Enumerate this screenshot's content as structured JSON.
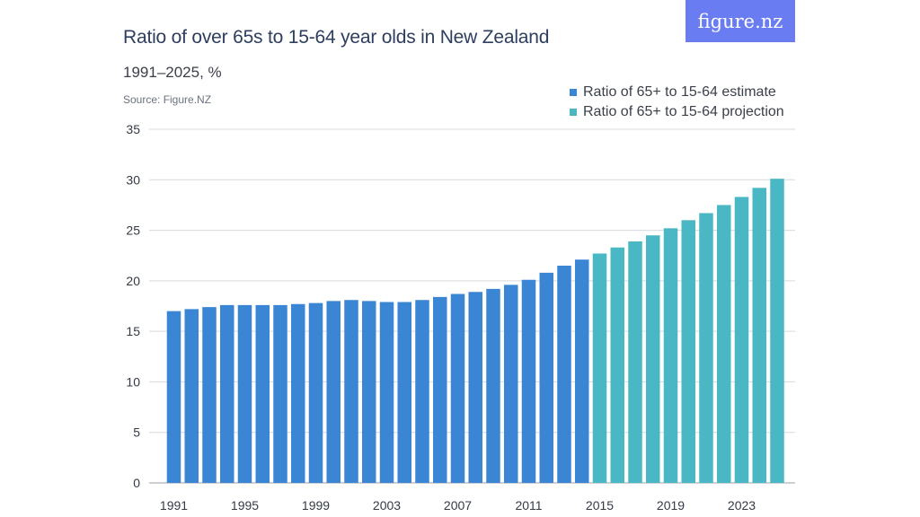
{
  "header": {
    "title": "Ratio of over 65s to 15-64 year olds in New Zealand",
    "subtitle": "1991–2025, %",
    "source": "Source: Figure.NZ",
    "logo_text": "figure.nz",
    "logo_color": "#6a7cf2"
  },
  "legend": [
    {
      "label": "Ratio of 65+ to 15-64 estimate",
      "color": "#3a86d4"
    },
    {
      "label": "Ratio of 65+ to 15-64 projection",
      "color": "#4ab8c4"
    }
  ],
  "chart_data": {
    "type": "bar",
    "title": "Ratio of over 65s to 15-64 year olds in New Zealand",
    "subtitle": "1991–2025, %",
    "ylim": [
      0,
      35
    ],
    "yticks": [
      0,
      5,
      10,
      15,
      20,
      25,
      30,
      35
    ],
    "grid": true,
    "legend_position": "top-right",
    "categories": [
      "1991",
      "1992",
      "1993",
      "1994",
      "1995",
      "1996",
      "1997",
      "1998",
      "1999",
      "2000",
      "2001",
      "2002",
      "2003",
      "2004",
      "2005",
      "2006",
      "2007",
      "2008",
      "2009",
      "2010",
      "2011",
      "2012",
      "2013",
      "2014",
      "2015",
      "2016",
      "2017",
      "2018",
      "2019",
      "2020",
      "2021",
      "2022",
      "2023",
      "2024",
      "2025"
    ],
    "xtick_labels": [
      "1991",
      "1995",
      "1999",
      "2003",
      "2007",
      "2011",
      "2015",
      "2019",
      "2023"
    ],
    "series": [
      {
        "name": "Ratio of 65+ to 15-64 estimate",
        "color": "#3a86d4",
        "x": [
          "1991",
          "1992",
          "1993",
          "1994",
          "1995",
          "1996",
          "1997",
          "1998",
          "1999",
          "2000",
          "2001",
          "2002",
          "2003",
          "2004",
          "2005",
          "2006",
          "2007",
          "2008",
          "2009",
          "2010",
          "2011",
          "2012",
          "2013",
          "2014"
        ],
        "values": [
          17.0,
          17.2,
          17.4,
          17.6,
          17.6,
          17.6,
          17.6,
          17.7,
          17.8,
          18.0,
          18.1,
          18.0,
          17.9,
          17.9,
          18.1,
          18.4,
          18.7,
          18.9,
          19.2,
          19.6,
          20.1,
          20.8,
          21.5,
          22.1
        ]
      },
      {
        "name": "Ratio of 65+ to 15-64 projection",
        "color": "#4ab8c4",
        "x": [
          "2015",
          "2016",
          "2017",
          "2018",
          "2019",
          "2020",
          "2021",
          "2022",
          "2023",
          "2024",
          "2025"
        ],
        "values": [
          22.7,
          23.3,
          23.9,
          24.5,
          25.2,
          26.0,
          26.7,
          27.5,
          28.3,
          29.2,
          30.1
        ]
      }
    ]
  }
}
